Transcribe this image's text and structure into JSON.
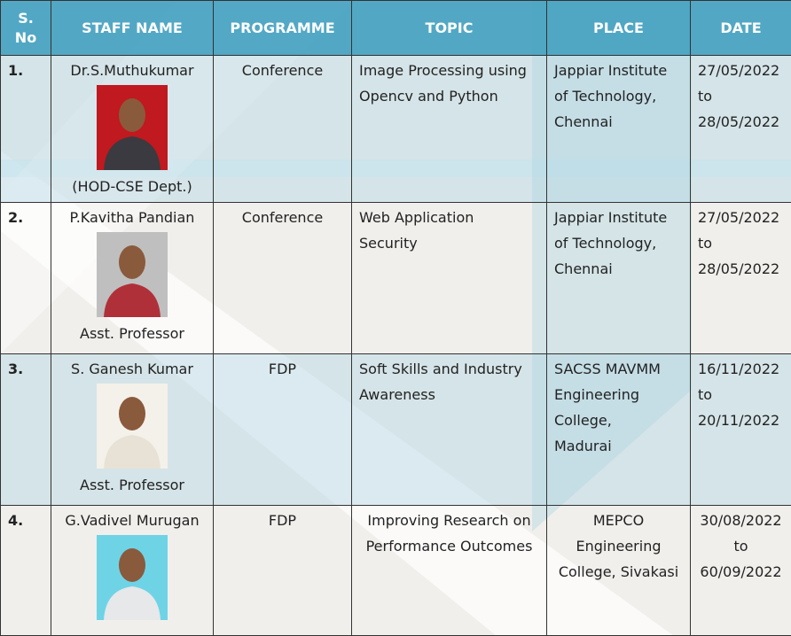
{
  "table": {
    "header": [
      "S.\nNo",
      "STAFF NAME",
      "PROGRAMME",
      "TOPIC",
      "PLACE",
      "DATE"
    ],
    "rows": [
      {
        "sno": "1.",
        "name": "Dr.S.Muthukumar",
        "designation": "(HOD-CSE Dept.)",
        "programme": "Conference",
        "topic": [
          "Image Processing using",
          "Opencv and Python"
        ],
        "place": [
          "Jappiar Institute",
          "of Technology,",
          "Chennai"
        ],
        "date": [
          "27/05/2022",
          "to",
          "28/05/2022"
        ]
      },
      {
        "sno": "2.",
        "name": "P.Kavitha Pandian",
        "designation": "Asst. Professor",
        "programme": "Conference",
        "topic": [
          "Web Application",
          "Security"
        ],
        "place": [
          "Jappiar Institute",
          "of Technology,",
          "Chennai"
        ],
        "date": [
          "27/05/2022",
          "to",
          "28/05/2022"
        ]
      },
      {
        "sno": "3.",
        "name": "S. Ganesh Kumar",
        "designation": "Asst. Professor",
        "programme": "FDP",
        "topic": [
          "Soft Skills and Industry",
          "Awareness"
        ],
        "place": [
          "SACSS MAVMM",
          "Engineering",
          "College,",
          "Madurai"
        ],
        "date": [
          "16/11/2022",
          "to",
          "20/11/2022"
        ]
      },
      {
        "sno": "4.",
        "name": "G.Vadivel Murugan",
        "designation": "",
        "programme": "FDP",
        "topic": [
          "Improving Research on",
          "Performance Outcomes"
        ],
        "place": [
          "MEPCO",
          "Engineering",
          "College, Sivakasi"
        ],
        "date": [
          "30/08/2022",
          "to",
          "60/09/2022"
        ]
      }
    ]
  }
}
